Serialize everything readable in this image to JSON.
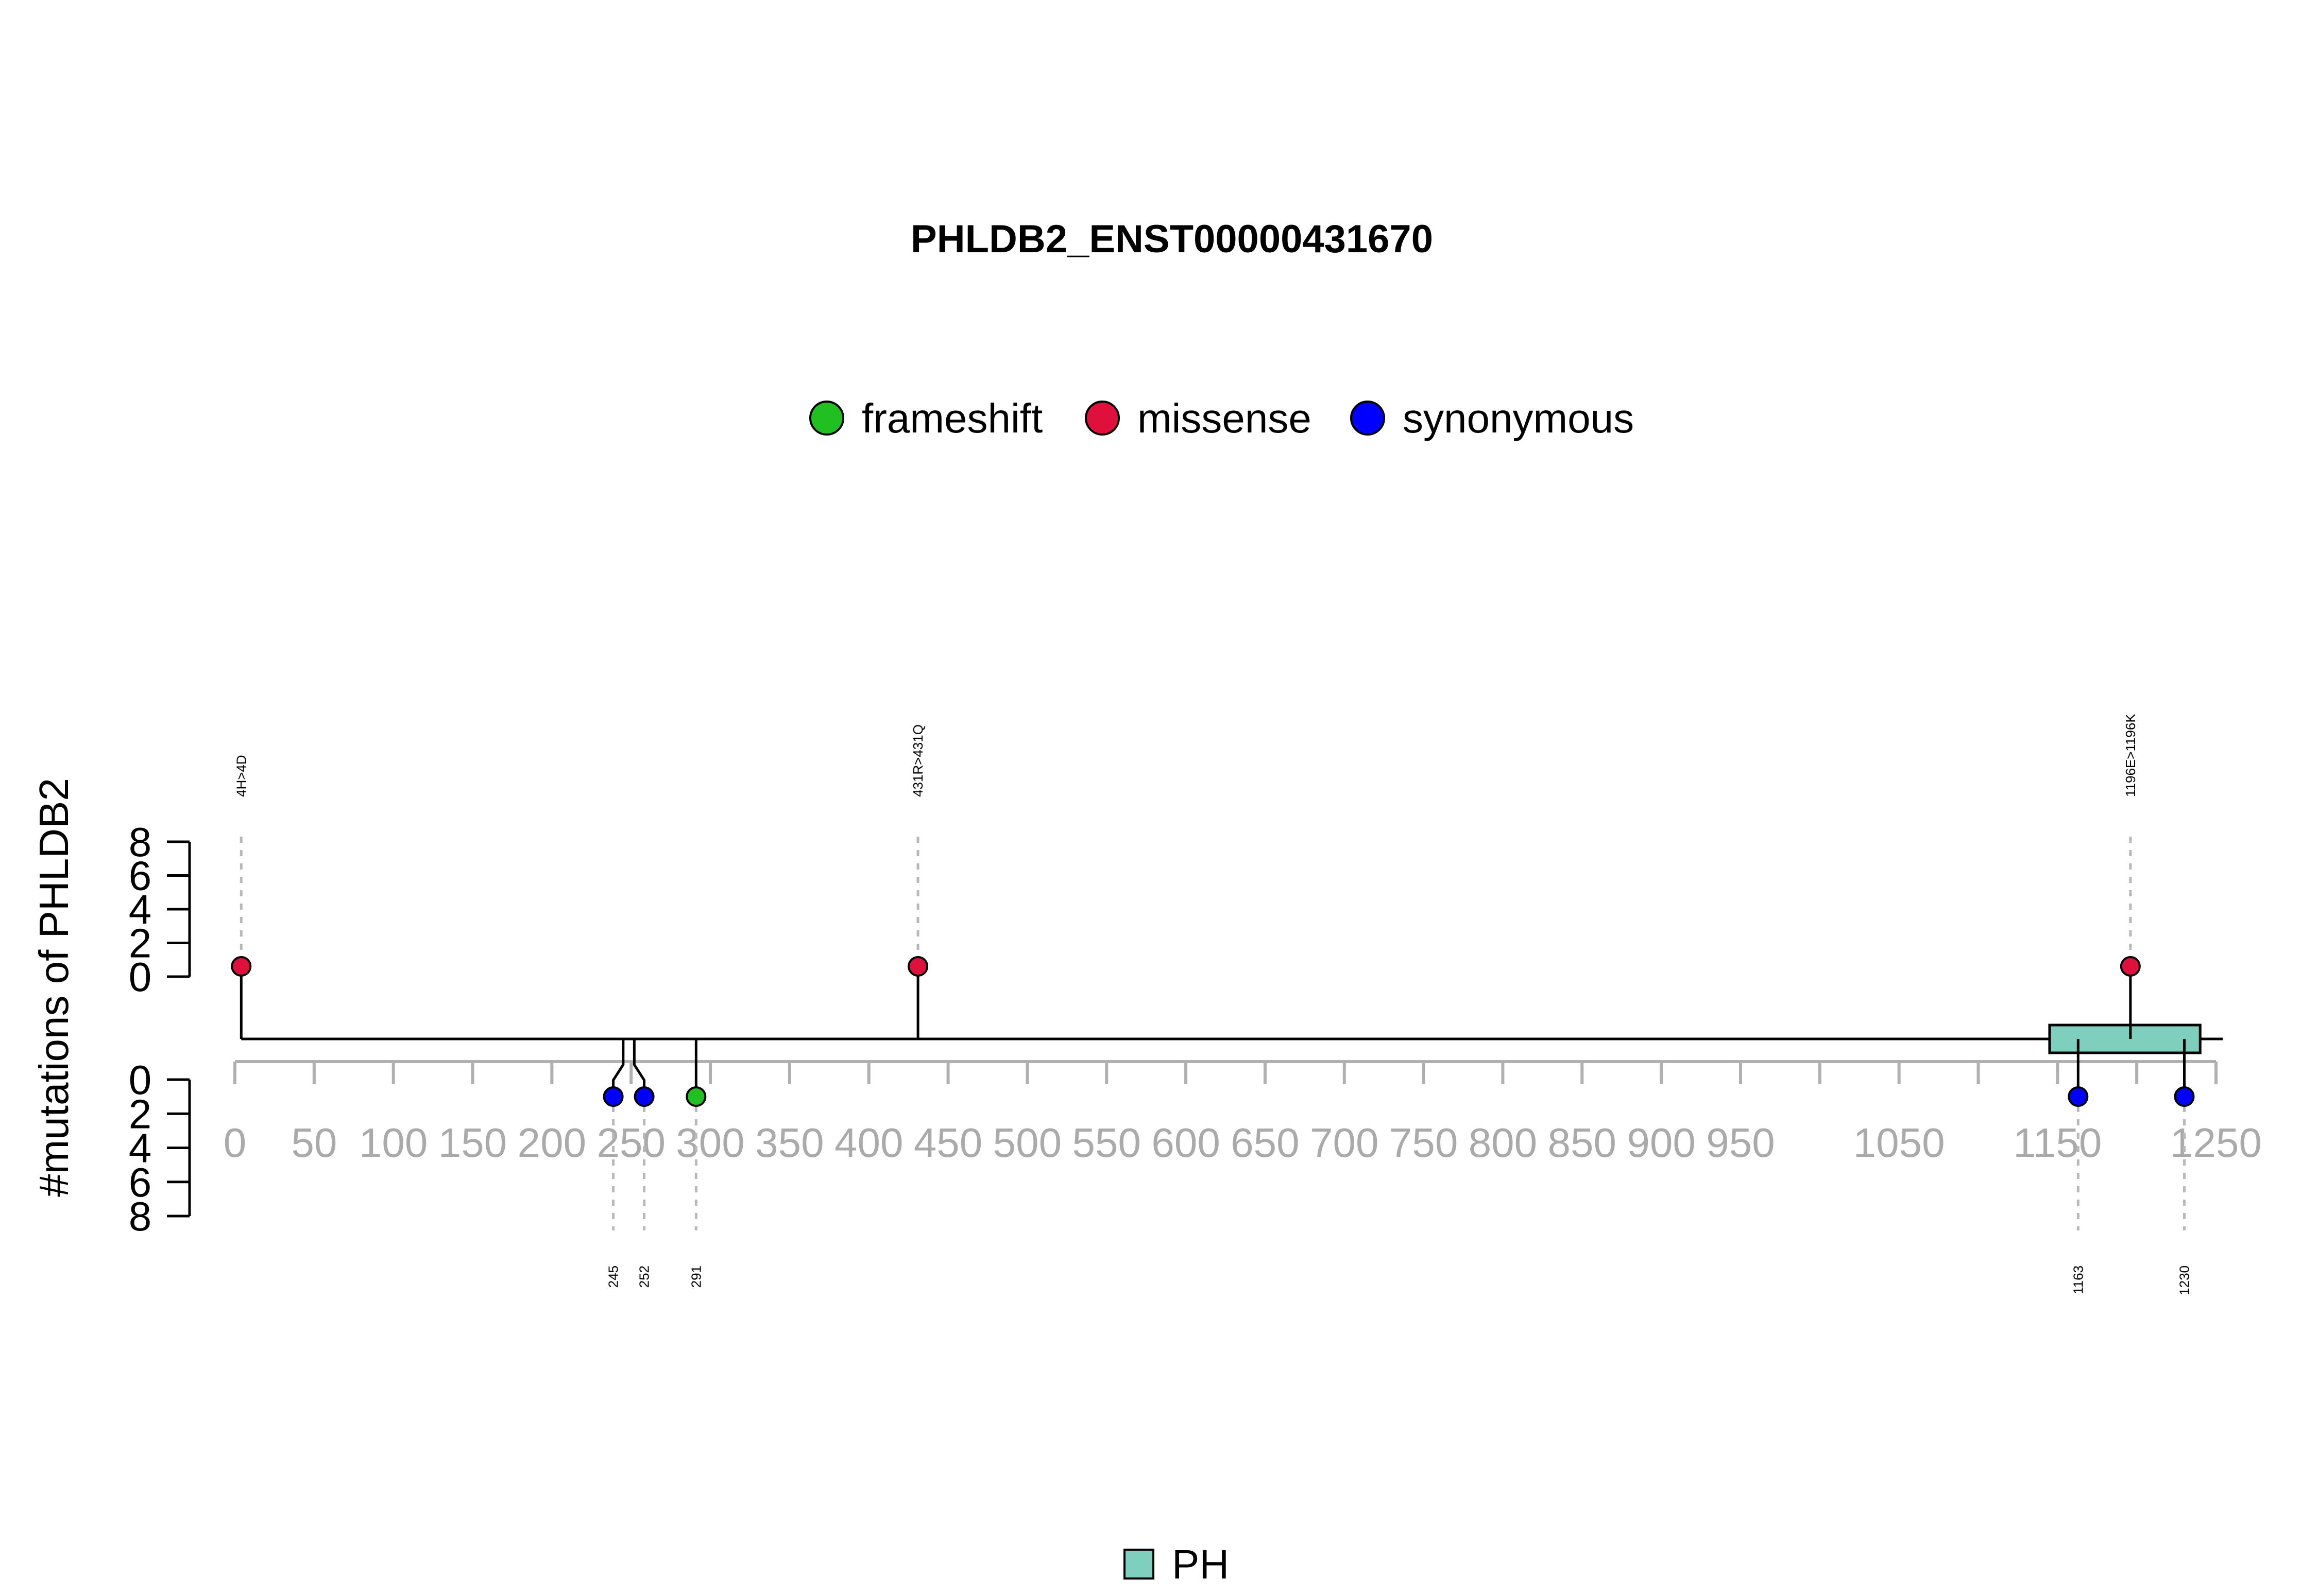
{
  "chart_data": {
    "type": "lollipop",
    "title": "PHLDB2_ENST00000431670",
    "ylabel": "#mutations of PHLDB2",
    "y_ticks": [
      "0",
      "2",
      "4",
      "6",
      "8"
    ],
    "x_ticks": [
      0,
      50,
      100,
      150,
      200,
      250,
      300,
      350,
      400,
      450,
      500,
      550,
      600,
      650,
      700,
      750,
      800,
      850,
      900,
      950,
      1050,
      1150,
      1250
    ],
    "xlim": [
      0,
      1250
    ],
    "ylim": [
      0,
      8
    ],
    "legend": [
      {
        "label": "frameshift",
        "color": "#1fc01f"
      },
      {
        "label": "missense",
        "color": "#e0103c"
      },
      {
        "label": "synonymous",
        "color": "#0000ff"
      }
    ],
    "domains": [
      {
        "name": "PH",
        "start": 1145,
        "end": 1240,
        "color": "#7fcfbf"
      }
    ],
    "domain_legend": [
      {
        "label": "PH",
        "color": "#7fcfbf"
      }
    ],
    "mutations_above": [
      {
        "position": 4,
        "label": "4H>4D",
        "type": "missense",
        "count": 1
      },
      {
        "position": 431,
        "label": "431R>431Q",
        "type": "missense",
        "count": 1
      },
      {
        "position": 1196,
        "label": "1196E>1196K",
        "type": "missense",
        "count": 1
      }
    ],
    "mutations_below": [
      {
        "position": 245,
        "label": "245",
        "type": "synonymous",
        "count": 1
      },
      {
        "position": 252,
        "label": "252",
        "type": "synonymous",
        "count": 1
      },
      {
        "position": 291,
        "label": "291",
        "type": "frameshift",
        "count": 1
      },
      {
        "position": 1163,
        "label": "1163",
        "type": "synonymous",
        "count": 1
      },
      {
        "position": 1230,
        "label": "1230",
        "type": "synonymous",
        "count": 1
      }
    ]
  }
}
